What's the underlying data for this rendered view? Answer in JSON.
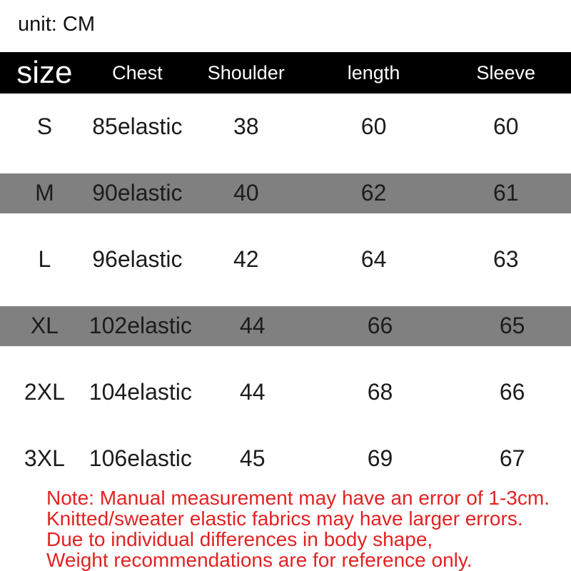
{
  "unit_label": "unit: CM",
  "table": {
    "columns": [
      "size",
      "Chest",
      "Shoulder",
      "length",
      "Sleeve"
    ],
    "rows": [
      {
        "size": "S",
        "chest": "85elastic",
        "shoulder": "38",
        "length": "60",
        "sleeve": "60",
        "highlighted": false
      },
      {
        "size": "M",
        "chest": "90elastic",
        "shoulder": "40",
        "length": "62",
        "sleeve": "61",
        "highlighted": true
      },
      {
        "size": "L",
        "chest": "96elastic",
        "shoulder": "42",
        "length": "64",
        "sleeve": "63",
        "highlighted": false
      },
      {
        "size": "XL",
        "chest": "102elastic",
        "shoulder": "44",
        "length": "66",
        "sleeve": "65",
        "highlighted": true
      },
      {
        "size": "2XL",
        "chest": "104elastic",
        "shoulder": "44",
        "length": "68",
        "sleeve": "66",
        "highlighted": false
      },
      {
        "size": "3XL",
        "chest": "106elastic",
        "shoulder": "45",
        "length": "69",
        "sleeve": "67",
        "highlighted": false
      }
    ]
  },
  "note": {
    "lines": [
      "Note: Manual measurement may have an error of 1-3cm.",
      "Knitted/sweater elastic fabrics may have larger errors.",
      "Due to individual differences in body shape,",
      "Weight recommendations are for reference only."
    ]
  },
  "colors": {
    "header_background": "#000000",
    "header_text": "#ffffff",
    "highlight_row_background": "#808080",
    "body_text": "#1c1c1c",
    "note_text": "#e32222",
    "page_background": "#ffffff"
  },
  "chart_data": {
    "type": "table",
    "title": "unit: CM",
    "columns": [
      "size",
      "Chest",
      "Shoulder",
      "length",
      "Sleeve"
    ],
    "rows": [
      [
        "S",
        "85elastic",
        "38",
        "60",
        "60"
      ],
      [
        "M",
        "90elastic",
        "40",
        "62",
        "61"
      ],
      [
        "L",
        "96elastic",
        "42",
        "64",
        "63"
      ],
      [
        "XL",
        "102elastic",
        "44",
        "66",
        "65"
      ],
      [
        "2XL",
        "104elastic",
        "44",
        "68",
        "66"
      ],
      [
        "3XL",
        "106elastic",
        "45",
        "69",
        "67"
      ]
    ],
    "highlighted_rows": [
      "M",
      "XL"
    ],
    "layout_hints": {
      "header_style": "black bar, white text, 'size' label enlarged",
      "row_highlight": "gray bands behind M and XL rows",
      "footnote": "red 4-line note, bottom-left"
    }
  }
}
